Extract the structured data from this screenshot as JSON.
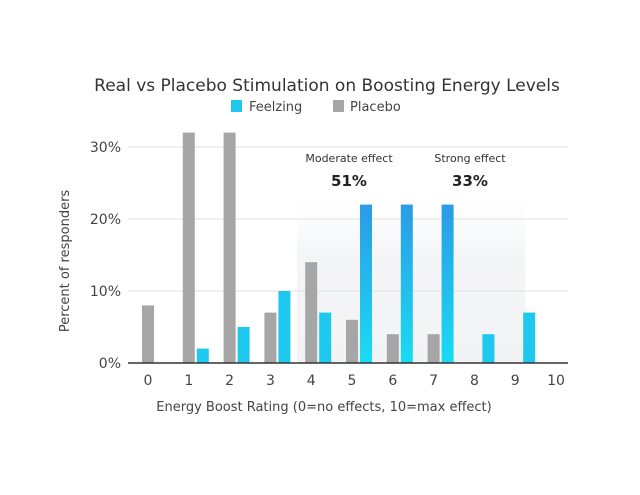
{
  "chart_data": {
    "type": "bar",
    "title": "Real vs Placebo Stimulation on Boosting Energy Levels",
    "xlabel": "Energy Boost Rating (0=no effects, 10=max effect)",
    "ylabel": "Percent of responders",
    "categories": [
      "0",
      "1",
      "2",
      "3",
      "4",
      "5",
      "6",
      "7",
      "8",
      "9",
      "10"
    ],
    "ylim": [
      0,
      33
    ],
    "yticks": [
      0,
      10,
      20,
      30
    ],
    "ytick_labels": [
      "0%",
      "10%",
      "20%",
      "30%"
    ],
    "grid": true,
    "legend_position": "top",
    "series": [
      {
        "name": "Feelzing",
        "color": "#1ec8ef",
        "values": [
          0,
          2,
          5,
          10,
          7,
          22,
          22,
          22,
          4,
          7,
          0
        ]
      },
      {
        "name": "Placebo",
        "color": "#a6a6a6",
        "values": [
          8,
          32,
          32,
          7,
          14,
          6,
          4,
          4,
          0,
          0,
          0
        ]
      }
    ],
    "annotations": [
      {
        "text": "Moderate effect",
        "value": "51%"
      },
      {
        "text": "Strong effect",
        "value": "33%"
      }
    ]
  }
}
